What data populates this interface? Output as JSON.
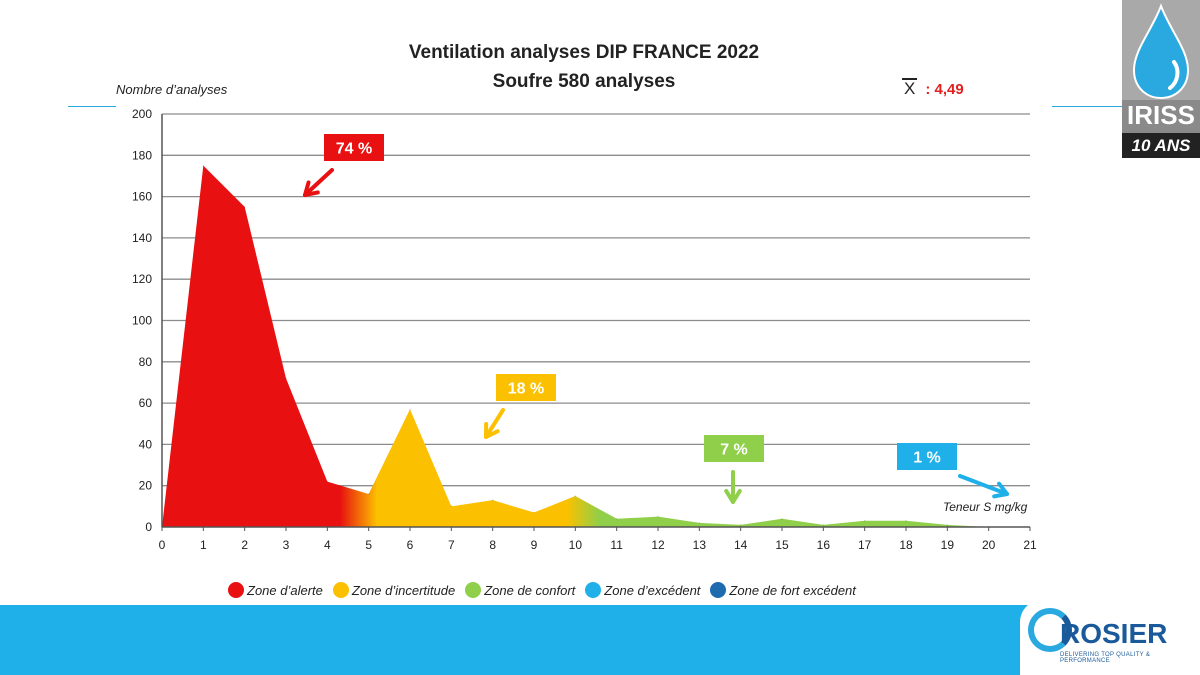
{
  "chart_data": {
    "type": "area",
    "title": "Ventilation analyses DIP FRANCE 2022",
    "subtitle": "Soufre 580 analyses",
    "ylabel": "Nombre d’analyses",
    "xlabel": "Teneur S mg/kg",
    "ylim": [
      0,
      200
    ],
    "xlim": [
      0,
      21
    ],
    "yticks": [
      "0",
      "20",
      "40",
      "60",
      "80",
      "100",
      "120",
      "140",
      "160",
      "180",
      "200"
    ],
    "xticks": [
      "0",
      "1",
      "2",
      "3",
      "4",
      "5",
      "6",
      "7",
      "8",
      "9",
      "10",
      "11",
      "12",
      "13",
      "14",
      "15",
      "16",
      "17",
      "18",
      "19",
      "20",
      "21"
    ],
    "grid": true,
    "x": [
      0,
      1,
      2,
      3,
      4,
      5,
      6,
      7,
      8,
      9,
      10,
      11,
      12,
      13,
      14,
      15,
      16,
      17,
      18,
      19,
      20
    ],
    "values": [
      0,
      175,
      155,
      72,
      22,
      16,
      57,
      10,
      13,
      7,
      15,
      4,
      5,
      2,
      1,
      4,
      1,
      3,
      3,
      1,
      0
    ],
    "zones": [
      {
        "name": "Zone d’alerte",
        "color": "#e81010",
        "percent": "74 %",
        "x_range": [
          0,
          4.3
        ]
      },
      {
        "name": "Zone d’incertitude",
        "color": "#fbc000",
        "percent": "18 %",
        "x_range": [
          5.2,
          9.8
        ]
      },
      {
        "name": "Zone de confort",
        "color": "#8fcf4a",
        "percent": "7 %",
        "x_range": [
          10.6,
          21
        ]
      },
      {
        "name": "Zone d’excédent",
        "color": "#1fb0ea",
        "percent": "1 %"
      },
      {
        "name": "Zone de fort excédent",
        "color": "#1f6bb0"
      }
    ],
    "mean_symbol": "X",
    "mean_value": ": 4,49",
    "legend_position": "bottom"
  },
  "logo_iriss": {
    "name": "IRISS",
    "sub": "10 ANS"
  },
  "logo_rosier": {
    "name": "ROSIER",
    "sub": "DELIVERING TOP QUALITY & PERFORMANCE"
  }
}
